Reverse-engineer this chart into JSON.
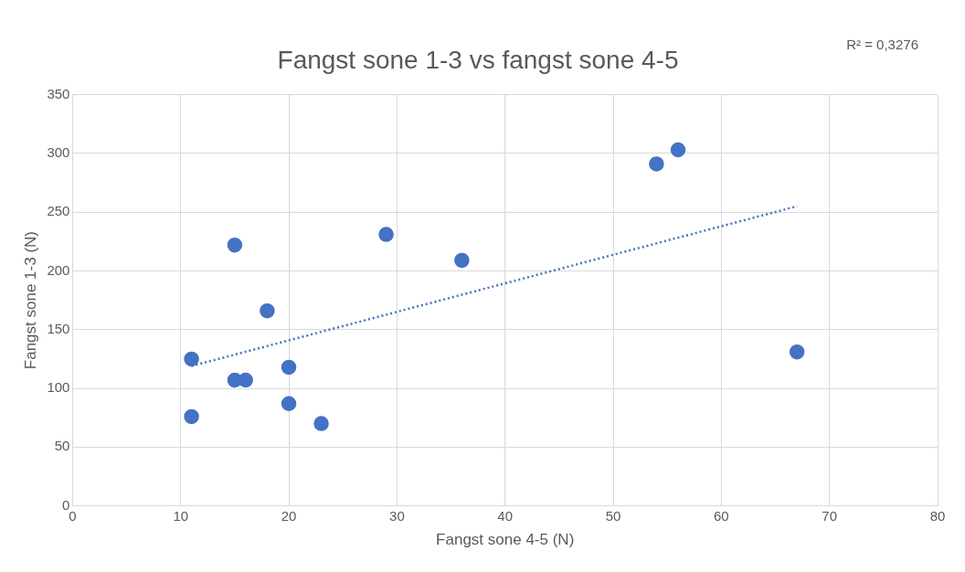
{
  "chart_data": {
    "type": "scatter",
    "title": "Fangst sone 1-3 vs fangst sone 4-5",
    "xlabel": "Fangst sone 4-5 (N)",
    "ylabel": "Fangst sone 1-3 (N)",
    "annotations": [
      "R² = 0,3276"
    ],
    "series": [
      {
        "color": "#4472c4",
        "x": [
          11,
          11,
          15,
          15,
          16,
          18,
          20,
          20,
          23,
          29,
          36,
          54,
          56,
          67
        ],
        "values": [
          125,
          76,
          222,
          107,
          107,
          166,
          118,
          87,
          70,
          231,
          209,
          291,
          303,
          131
        ]
      },
      {
        "type": "line",
        "color": "#4472c4",
        "line_style": "dotted",
        "marker": "none",
        "x": [
          11,
          67
        ],
        "values": [
          119,
          255
        ]
      }
    ],
    "xlim": [
      0,
      80
    ],
    "xticks": [
      0,
      10,
      20,
      30,
      40,
      50,
      60,
      70,
      80
    ],
    "ylim": [
      0,
      350
    ],
    "yticks": [
      0,
      50,
      100,
      150,
      200,
      250,
      300,
      350
    ],
    "grid": true,
    "legend": false,
    "marker": "circle"
  }
}
